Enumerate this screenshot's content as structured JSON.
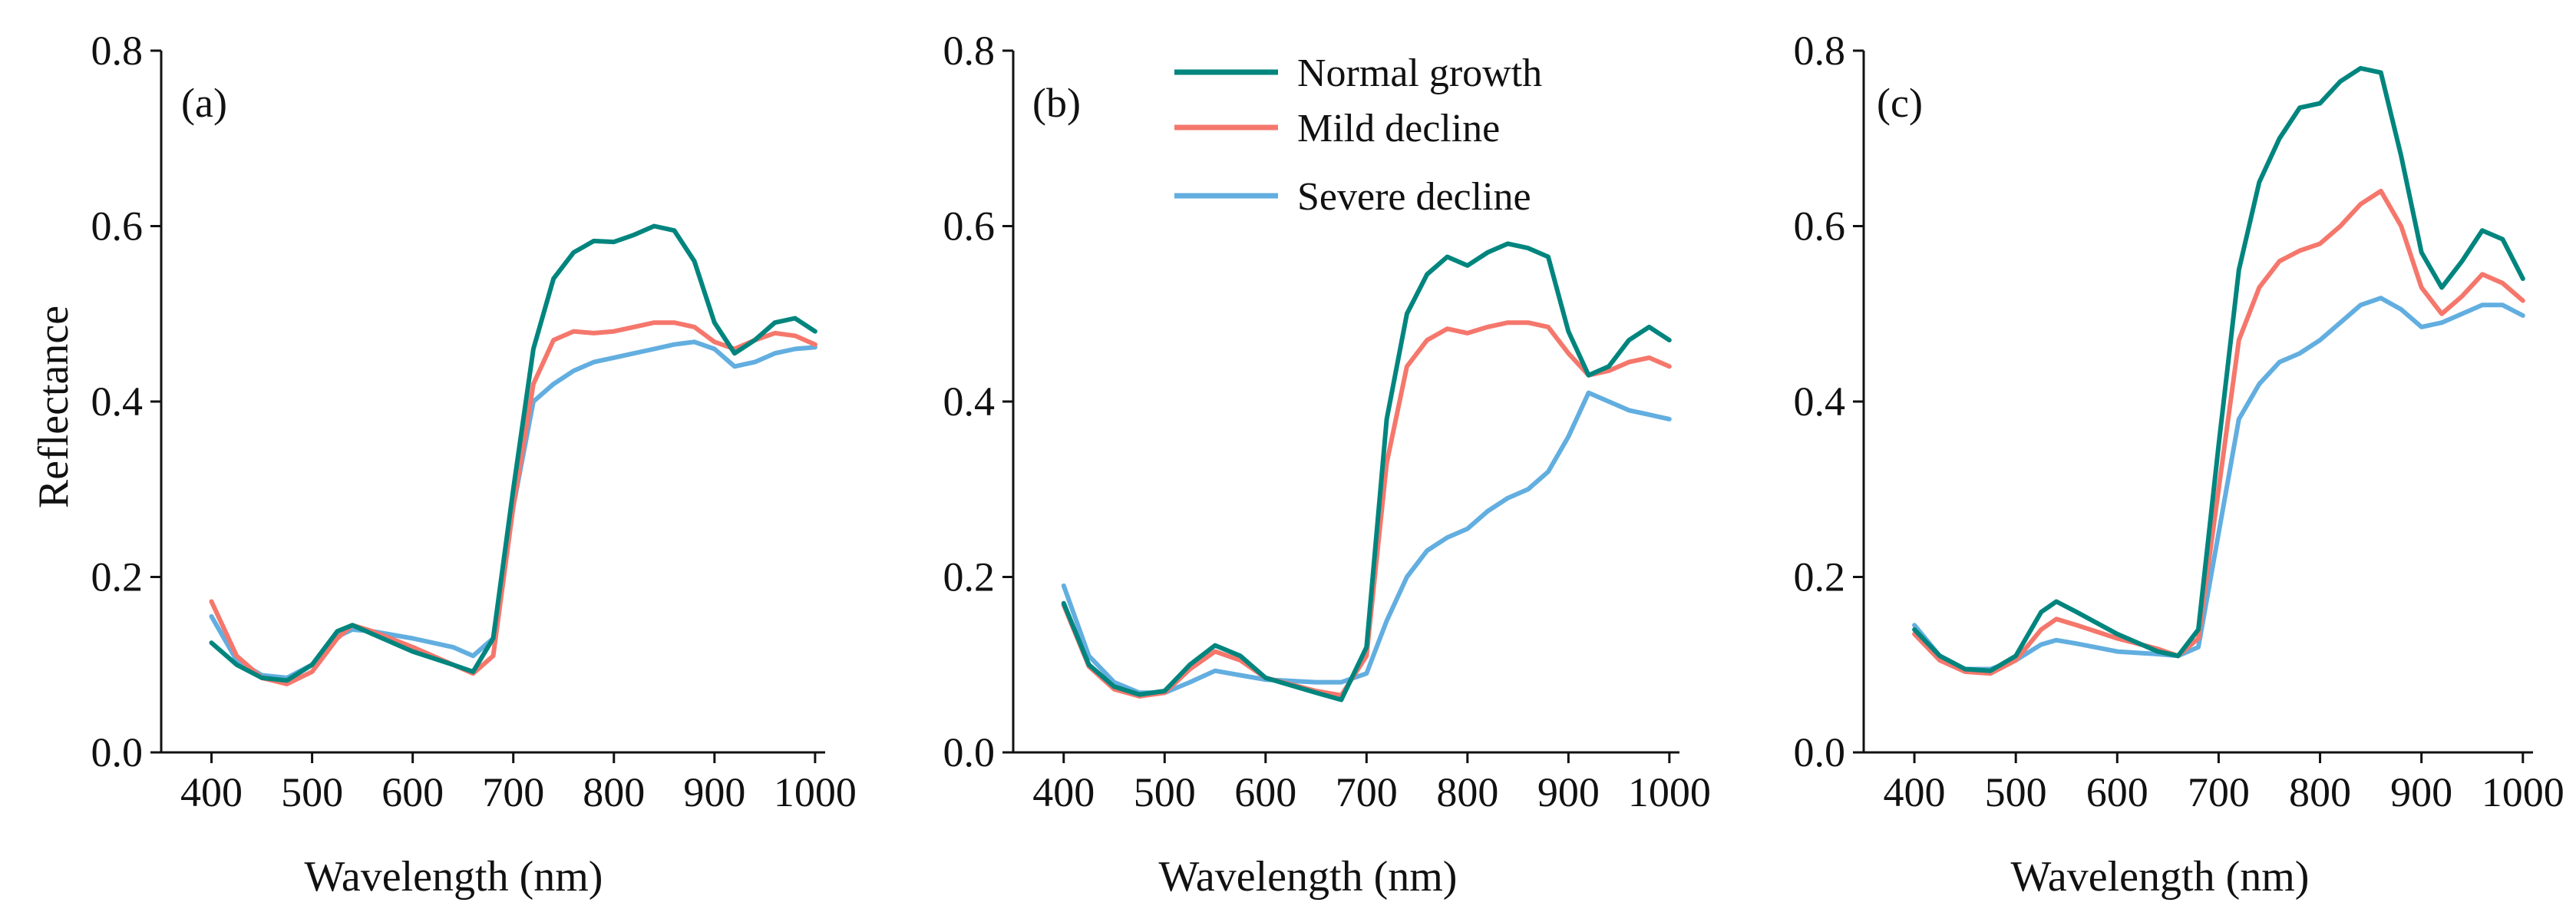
{
  "chart_data": [
    {
      "type": "line",
      "panel_label": "(a)",
      "xlabel": "Wavelength (nm)",
      "ylabel": "Reflectance",
      "xlim": [
        350,
        1010
      ],
      "ylim": [
        0.0,
        0.8
      ],
      "xticks": [
        400,
        500,
        600,
        700,
        800,
        900,
        1000
      ],
      "xtick_labels": [
        "400",
        "500",
        "600",
        "700",
        "800",
        "900",
        "1000"
      ],
      "yticks": [
        0.0,
        0.2,
        0.4,
        0.6,
        0.8
      ],
      "ytick_labels": [
        "0.0",
        "0.2",
        "0.4",
        "0.6",
        "0.8"
      ],
      "x": [
        400,
        425,
        450,
        475,
        500,
        525,
        540,
        560,
        600,
        640,
        660,
        680,
        700,
        720,
        740,
        760,
        780,
        800,
        820,
        840,
        860,
        880,
        900,
        920,
        940,
        960,
        980,
        1000
      ],
      "series": [
        {
          "name": "Normal growth",
          "values": [
            0.125,
            0.1,
            0.085,
            0.082,
            0.1,
            0.138,
            0.145,
            0.135,
            0.115,
            0.1,
            0.092,
            0.13,
            0.3,
            0.46,
            0.54,
            0.57,
            0.583,
            0.582,
            0.59,
            0.6,
            0.595,
            0.56,
            0.49,
            0.455,
            0.47,
            0.49,
            0.495,
            0.48
          ]
        },
        {
          "name": "Mild decline",
          "values": [
            0.172,
            0.11,
            0.085,
            0.078,
            0.092,
            0.13,
            0.145,
            0.138,
            0.12,
            0.1,
            0.09,
            0.11,
            0.28,
            0.42,
            0.47,
            0.48,
            0.478,
            0.48,
            0.485,
            0.49,
            0.49,
            0.485,
            0.468,
            0.46,
            0.47,
            0.478,
            0.475,
            0.465
          ]
        },
        {
          "name": "Severe decline",
          "values": [
            0.155,
            0.105,
            0.088,
            0.085,
            0.1,
            0.132,
            0.14,
            0.138,
            0.13,
            0.12,
            0.11,
            0.13,
            0.28,
            0.4,
            0.42,
            0.435,
            0.445,
            0.45,
            0.455,
            0.46,
            0.465,
            0.468,
            0.46,
            0.44,
            0.445,
            0.455,
            0.46,
            0.462
          ]
        }
      ]
    },
    {
      "type": "line",
      "panel_label": "(b)",
      "xlabel": "Wavelength (nm)",
      "ylabel": "",
      "xlim": [
        350,
        1010
      ],
      "ylim": [
        0.0,
        0.8
      ],
      "xticks": [
        400,
        500,
        600,
        700,
        800,
        900,
        1000
      ],
      "xtick_labels": [
        "400",
        "500",
        "600",
        "700",
        "800",
        "900",
        "1000"
      ],
      "yticks": [
        0.0,
        0.2,
        0.4,
        0.6,
        0.8
      ],
      "ytick_labels": [
        "0.0",
        "0.2",
        "0.4",
        "0.6",
        "0.8"
      ],
      "legend": {
        "position": "top-center",
        "entries": [
          "Normal growth",
          "Mild decline",
          "Severe decline"
        ]
      },
      "x": [
        400,
        425,
        450,
        475,
        500,
        525,
        550,
        575,
        600,
        650,
        675,
        700,
        720,
        740,
        760,
        780,
        800,
        820,
        840,
        860,
        880,
        900,
        920,
        940,
        960,
        980,
        1000
      ],
      "series": [
        {
          "name": "Normal growth",
          "values": [
            0.17,
            0.1,
            0.075,
            0.066,
            0.07,
            0.1,
            0.122,
            0.11,
            0.085,
            0.068,
            0.06,
            0.12,
            0.38,
            0.5,
            0.545,
            0.565,
            0.555,
            0.57,
            0.58,
            0.575,
            0.565,
            0.48,
            0.43,
            0.44,
            0.47,
            0.485,
            0.47
          ]
        },
        {
          "name": "Mild decline",
          "values": [
            0.168,
            0.098,
            0.072,
            0.064,
            0.068,
            0.095,
            0.115,
            0.105,
            0.085,
            0.07,
            0.065,
            0.11,
            0.33,
            0.44,
            0.47,
            0.483,
            0.478,
            0.485,
            0.49,
            0.49,
            0.485,
            0.455,
            0.43,
            0.435,
            0.445,
            0.45,
            0.44
          ]
        },
        {
          "name": "Severe decline",
          "values": [
            0.19,
            0.11,
            0.08,
            0.068,
            0.068,
            0.08,
            0.093,
            0.088,
            0.083,
            0.08,
            0.08,
            0.09,
            0.15,
            0.2,
            0.23,
            0.245,
            0.255,
            0.275,
            0.29,
            0.3,
            0.32,
            0.36,
            0.41,
            0.4,
            0.39,
            0.385,
            0.38
          ]
        }
      ]
    },
    {
      "type": "line",
      "panel_label": "(c)",
      "xlabel": "Wavelength (nm)",
      "ylabel": "",
      "xlim": [
        350,
        1010
      ],
      "ylim": [
        0.0,
        0.8
      ],
      "xticks": [
        400,
        500,
        600,
        700,
        800,
        900,
        1000
      ],
      "xtick_labels": [
        "400",
        "500",
        "600",
        "700",
        "800",
        "900",
        "1000"
      ],
      "yticks": [
        0.0,
        0.2,
        0.4,
        0.6,
        0.8
      ],
      "ytick_labels": [
        "0.0",
        "0.2",
        "0.4",
        "0.6",
        "0.8"
      ],
      "x": [
        400,
        425,
        450,
        475,
        500,
        525,
        540,
        560,
        600,
        640,
        660,
        680,
        700,
        720,
        740,
        760,
        780,
        800,
        820,
        840,
        860,
        880,
        900,
        920,
        940,
        960,
        980,
        1000
      ],
      "series": [
        {
          "name": "Normal growth",
          "values": [
            0.14,
            0.11,
            0.095,
            0.093,
            0.11,
            0.16,
            0.172,
            0.16,
            0.135,
            0.115,
            0.11,
            0.14,
            0.35,
            0.55,
            0.65,
            0.7,
            0.735,
            0.74,
            0.765,
            0.78,
            0.775,
            0.68,
            0.57,
            0.53,
            0.56,
            0.595,
            0.585,
            0.54
          ]
        },
        {
          "name": "Mild decline",
          "values": [
            0.135,
            0.105,
            0.092,
            0.09,
            0.105,
            0.14,
            0.152,
            0.145,
            0.13,
            0.118,
            0.11,
            0.13,
            0.3,
            0.47,
            0.53,
            0.56,
            0.572,
            0.58,
            0.6,
            0.625,
            0.64,
            0.6,
            0.53,
            0.5,
            0.52,
            0.545,
            0.535,
            0.515
          ]
        },
        {
          "name": "Severe decline",
          "values": [
            0.145,
            0.11,
            0.095,
            0.095,
            0.105,
            0.123,
            0.128,
            0.124,
            0.115,
            0.112,
            0.11,
            0.12,
            0.25,
            0.38,
            0.42,
            0.445,
            0.455,
            0.47,
            0.49,
            0.51,
            0.518,
            0.505,
            0.485,
            0.49,
            0.5,
            0.51,
            0.51,
            0.498
          ]
        }
      ]
    }
  ],
  "series_colors": {
    "Normal growth": "#00857e",
    "Mild decline": "#f5776c",
    "Severe decline": "#62aee0"
  }
}
